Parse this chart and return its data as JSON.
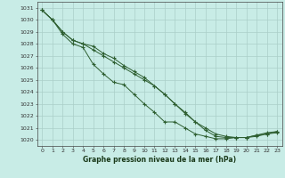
{
  "title": "Graphe pression niveau de la mer (hPa)",
  "bg_color": "#c8ece6",
  "grid_color": "#aacfc8",
  "line_color": "#2d5e30",
  "xlim": [
    -0.5,
    23.5
  ],
  "ylim": [
    1019.5,
    1031.5
  ],
  "yticks": [
    1020,
    1021,
    1022,
    1023,
    1024,
    1025,
    1026,
    1027,
    1028,
    1029,
    1030,
    1031
  ],
  "xticks": [
    0,
    1,
    2,
    3,
    4,
    5,
    6,
    7,
    8,
    9,
    10,
    11,
    12,
    13,
    14,
    15,
    16,
    17,
    18,
    19,
    20,
    21,
    22,
    23
  ],
  "series": [
    [
      1030.8,
      1030.0,
      1028.8,
      1028.0,
      1027.7,
      1026.3,
      1025.5,
      1024.8,
      1024.6,
      1023.8,
      1023.0,
      1022.3,
      1021.5,
      1021.5,
      1021.0,
      1020.5,
      1020.3,
      1020.1,
      1020.1,
      1020.2,
      1020.2,
      1020.4,
      1020.5,
      1020.6
    ],
    [
      1030.8,
      1030.0,
      1029.0,
      1028.3,
      1028.0,
      1027.5,
      1027.0,
      1026.5,
      1026.0,
      1025.5,
      1025.0,
      1024.5,
      1023.8,
      1023.0,
      1022.3,
      1021.5,
      1021.0,
      1020.5,
      1020.3,
      1020.2,
      1020.2,
      1020.3,
      1020.5,
      1020.7
    ],
    [
      1030.8,
      1030.0,
      1029.0,
      1028.3,
      1028.0,
      1027.8,
      1027.2,
      1026.8,
      1026.2,
      1025.7,
      1025.2,
      1024.5,
      1023.8,
      1023.0,
      1022.2,
      1021.5,
      1020.8,
      1020.3,
      1020.2,
      1020.2,
      1020.2,
      1020.4,
      1020.6,
      1020.7
    ]
  ]
}
